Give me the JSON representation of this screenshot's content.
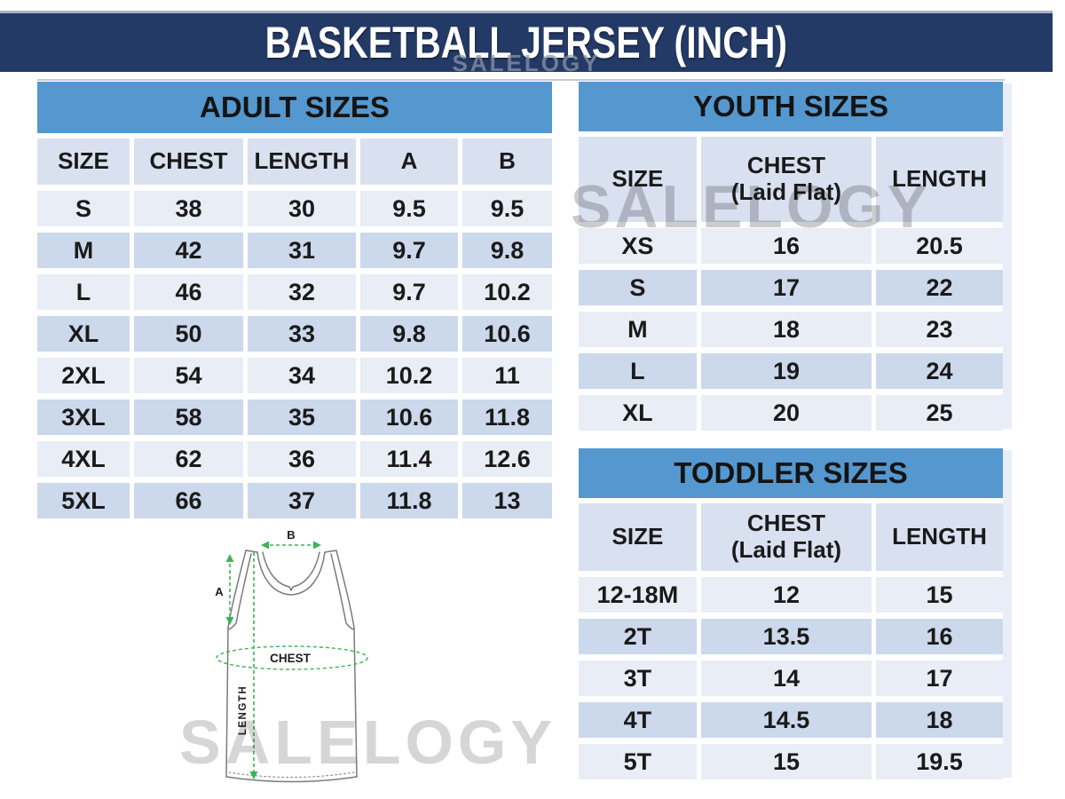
{
  "banner": {
    "title": "BASKETBALL JERSEY (INCH)"
  },
  "watermarks": {
    "banner": "SALELOGY",
    "middle": "SALELOGY",
    "bottom": "SALELOGY"
  },
  "colors": {
    "banner_bg": "#243a66",
    "table_title_bg": "#5598d0",
    "header_row_bg": "#d9e1f0",
    "row_light_bg": "#e9edf6",
    "row_dark_bg": "#ccd8eb",
    "measure_arrow_green": "#3cb454",
    "jersey_outline_gray": "#7b7b7b",
    "title_text": "#ffffff"
  },
  "tables": {
    "adult": {
      "title": "ADULT SIZES",
      "columns": [
        "SIZE",
        "CHEST",
        "LENGTH",
        "A",
        "B"
      ],
      "rows": [
        [
          "S",
          "38",
          "30",
          "9.5",
          "9.5"
        ],
        [
          "M",
          "42",
          "31",
          "9.7",
          "9.8"
        ],
        [
          "L",
          "46",
          "32",
          "9.7",
          "10.2"
        ],
        [
          "XL",
          "50",
          "33",
          "9.8",
          "10.6"
        ],
        [
          "2XL",
          "54",
          "34",
          "10.2",
          "11"
        ],
        [
          "3XL",
          "58",
          "35",
          "10.6",
          "11.8"
        ],
        [
          "4XL",
          "62",
          "36",
          "11.4",
          "12.6"
        ],
        [
          "5XL",
          "66",
          "37",
          "11.8",
          "13"
        ]
      ]
    },
    "youth": {
      "title": "YOUTH SIZES",
      "columns": [
        "SIZE",
        "CHEST\n(Laid Flat)",
        "LENGTH"
      ],
      "rows": [
        [
          "XS",
          "16",
          "20.5"
        ],
        [
          "S",
          "17",
          "22"
        ],
        [
          "M",
          "18",
          "23"
        ],
        [
          "L",
          "19",
          "24"
        ],
        [
          "XL",
          "20",
          "25"
        ]
      ]
    },
    "toddler": {
      "title": "TODDLER SIZES",
      "columns": [
        "SIZE",
        "CHEST\n(Laid Flat)",
        "LENGTH"
      ],
      "rows": [
        [
          "12-18M",
          "12",
          "15"
        ],
        [
          "2T",
          "13.5",
          "16"
        ],
        [
          "3T",
          "14",
          "17"
        ],
        [
          "4T",
          "14.5",
          "18"
        ],
        [
          "5T",
          "15",
          "19.5"
        ]
      ]
    }
  },
  "diagram": {
    "label_a": "A",
    "label_b": "B",
    "label_chest": "CHEST",
    "label_length": "LENGTH"
  }
}
